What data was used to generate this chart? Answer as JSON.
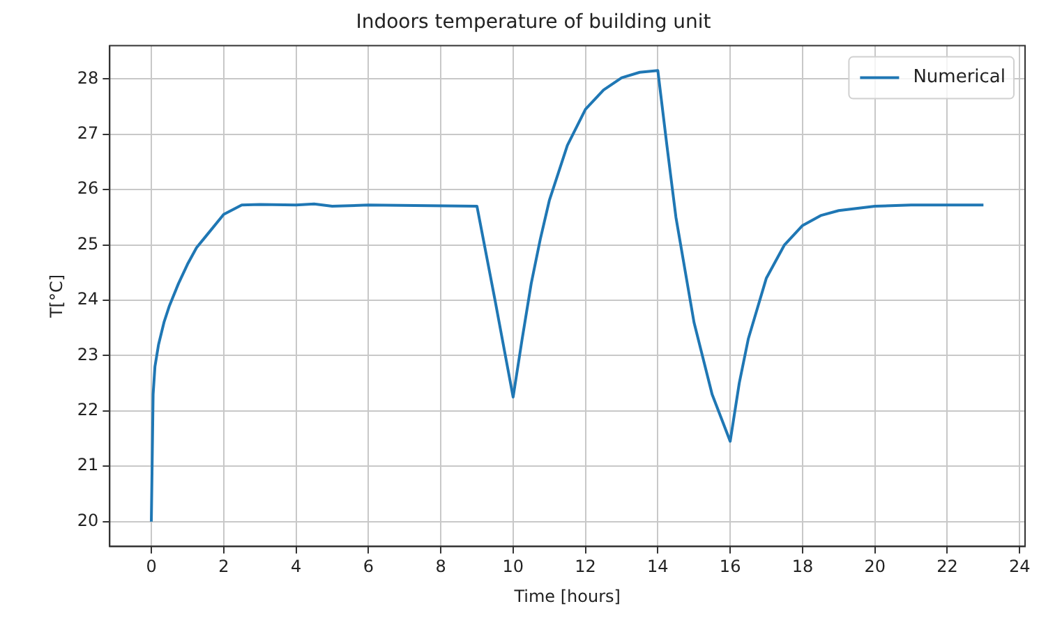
{
  "chart_data": {
    "type": "line",
    "title": "Indoors temperature of building unit",
    "xlabel": "Time [hours]",
    "ylabel": "T[°C]",
    "x": [
      0,
      0.05,
      0.1,
      0.2,
      0.35,
      0.5,
      0.75,
      1,
      1.25,
      1.5,
      2,
      2.5,
      3,
      4,
      4.5,
      5,
      6,
      9,
      9.5,
      10,
      10.25,
      10.5,
      10.75,
      11,
      11.5,
      12,
      12.5,
      13,
      13.5,
      14,
      14.25,
      14.5,
      15,
      15.5,
      16,
      16.25,
      16.5,
      17,
      17.5,
      18,
      18.5,
      19,
      20,
      21,
      23
    ],
    "series": [
      {
        "name": "Numerical",
        "color": "#1f77b4",
        "values": [
          20,
          22.3,
          22.8,
          23.2,
          23.6,
          23.9,
          24.3,
          24.65,
          24.95,
          25.15,
          25.55,
          25.72,
          25.73,
          25.72,
          25.74,
          25.7,
          25.72,
          25.7,
          24,
          22.25,
          23.3,
          24.3,
          25.1,
          25.8,
          26.8,
          27.45,
          27.8,
          28.02,
          28.12,
          28.15,
          26.8,
          25.5,
          23.6,
          22.3,
          21.45,
          22.5,
          23.3,
          24.4,
          25,
          25.35,
          25.53,
          25.62,
          25.7,
          25.72,
          25.72
        ]
      }
    ],
    "xlim": [
      -1.15,
      24.15
    ],
    "xticks": [
      0,
      2,
      4,
      6,
      8,
      10,
      12,
      14,
      16,
      18,
      20,
      22,
      24
    ],
    "ylim": [
      19.55,
      28.6
    ],
    "yticks": [
      20,
      21,
      22,
      23,
      24,
      25,
      26,
      27,
      28
    ],
    "grid": true,
    "legend": "top right",
    "marker": "none",
    "line_style": "solid"
  }
}
